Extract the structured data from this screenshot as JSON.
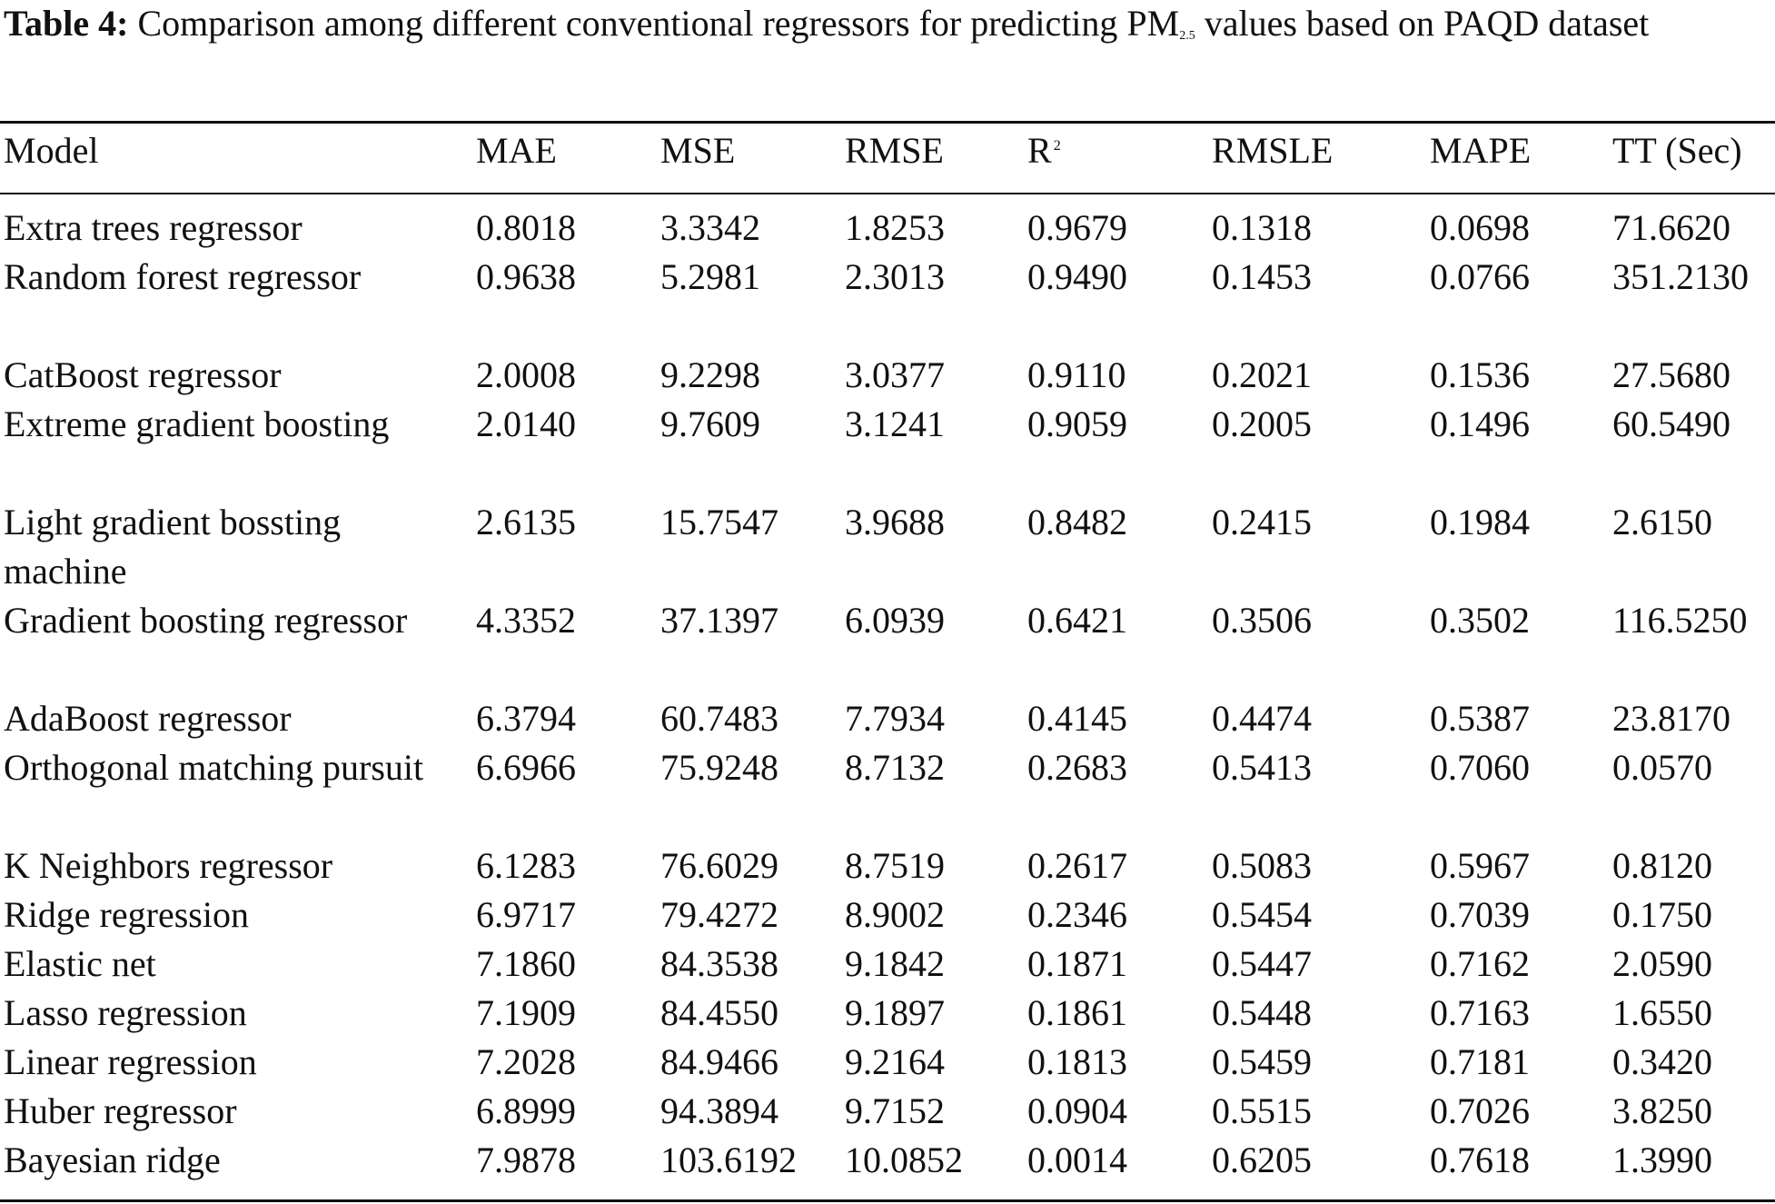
{
  "caption": {
    "label": "Table 4:",
    "text_before_sub": " Comparison among different conventional regressors for predicting PM",
    "subscript": "2.5",
    "text_after_sub": " values based on PAQD dataset"
  },
  "table": {
    "headers": {
      "model": "Model",
      "mae": "MAE",
      "mse": "MSE",
      "rmse": "RMSE",
      "r2_base": "R",
      "r2_sup": "2",
      "rmsle": "RMSLE",
      "mape": "MAPE",
      "tt": "TT (Sec)"
    },
    "rows": [
      {
        "model": "Extra trees regressor",
        "mae": "0.8018",
        "mse": "3.3342",
        "rmse": "1.8253",
        "r2": "0.9679",
        "rmsle": "0.1318",
        "mape": "0.0698",
        "tt": "71.6620"
      },
      {
        "model": "Random forest regressor",
        "mae": "0.9638",
        "mse": "5.2981",
        "rmse": "2.3013",
        "r2": "0.9490",
        "rmsle": "0.1453",
        "mape": "0.0766",
        "tt": "351.2130"
      },
      {
        "model": "CatBoost regressor",
        "mae": "2.0008",
        "mse": "9.2298",
        "rmse": "3.0377",
        "r2": "0.9110",
        "rmsle": "0.2021",
        "mape": "0.1536",
        "tt": "27.5680"
      },
      {
        "model": "Extreme gradient boosting",
        "mae": "2.0140",
        "mse": "9.7609",
        "rmse": "3.1241",
        "r2": "0.9059",
        "rmsle": "0.2005",
        "mape": "0.1496",
        "tt": "60.5490"
      },
      {
        "model": "Light gradient bossting machine",
        "mae": "2.6135",
        "mse": "15.7547",
        "rmse": "3.9688",
        "r2": "0.8482",
        "rmsle": "0.2415",
        "mape": "0.1984",
        "tt": "2.6150"
      },
      {
        "model": "Gradient boosting regressor",
        "mae": "4.3352",
        "mse": "37.1397",
        "rmse": "6.0939",
        "r2": "0.6421",
        "rmsle": "0.3506",
        "mape": "0.3502",
        "tt": "116.5250"
      },
      {
        "model": "AdaBoost regressor",
        "mae": "6.3794",
        "mse": "60.7483",
        "rmse": "7.7934",
        "r2": "0.4145",
        "rmsle": "0.4474",
        "mape": "0.5387",
        "tt": "23.8170"
      },
      {
        "model": "Orthogonal matching pursuit",
        "mae": "6.6966",
        "mse": "75.9248",
        "rmse": "8.7132",
        "r2": "0.2683",
        "rmsle": "0.5413",
        "mape": "0.7060",
        "tt": "0.0570"
      },
      {
        "model": "K Neighbors regressor",
        "mae": "6.1283",
        "mse": "76.6029",
        "rmse": "8.7519",
        "r2": "0.2617",
        "rmsle": "0.5083",
        "mape": "0.5967",
        "tt": "0.8120"
      },
      {
        "model": "Ridge regression",
        "mae": "6.9717",
        "mse": "79.4272",
        "rmse": "8.9002",
        "r2": "0.2346",
        "rmsle": "0.5454",
        "mape": "0.7039",
        "tt": "0.1750"
      },
      {
        "model": "Elastic net",
        "mae": "7.1860",
        "mse": "84.3538",
        "rmse": "9.1842",
        "r2": "0.1871",
        "rmsle": "0.5447",
        "mape": "0.7162",
        "tt": "2.0590"
      },
      {
        "model": "Lasso regression",
        "mae": "7.1909",
        "mse": "84.4550",
        "rmse": "9.1897",
        "r2": "0.1861",
        "rmsle": "0.5448",
        "mape": "0.7163",
        "tt": "1.6550"
      },
      {
        "model": "Linear regression",
        "mae": "7.2028",
        "mse": "84.9466",
        "rmse": "9.2164",
        "r2": "0.1813",
        "rmsle": "0.5459",
        "mape": "0.7181",
        "tt": "0.3420"
      },
      {
        "model": "Huber regressor",
        "mae": "6.8999",
        "mse": "94.3894",
        "rmse": "9.7152",
        "r2": "0.0904",
        "rmsle": "0.5515",
        "mape": "0.7026",
        "tt": "3.8250"
      },
      {
        "model": "Bayesian ridge",
        "mae": "7.9878",
        "mse": "103.6192",
        "rmse": "10.0852",
        "r2": "0.0014",
        "rmsle": "0.6205",
        "mape": "0.7618",
        "tt": "1.3990"
      }
    ]
  }
}
